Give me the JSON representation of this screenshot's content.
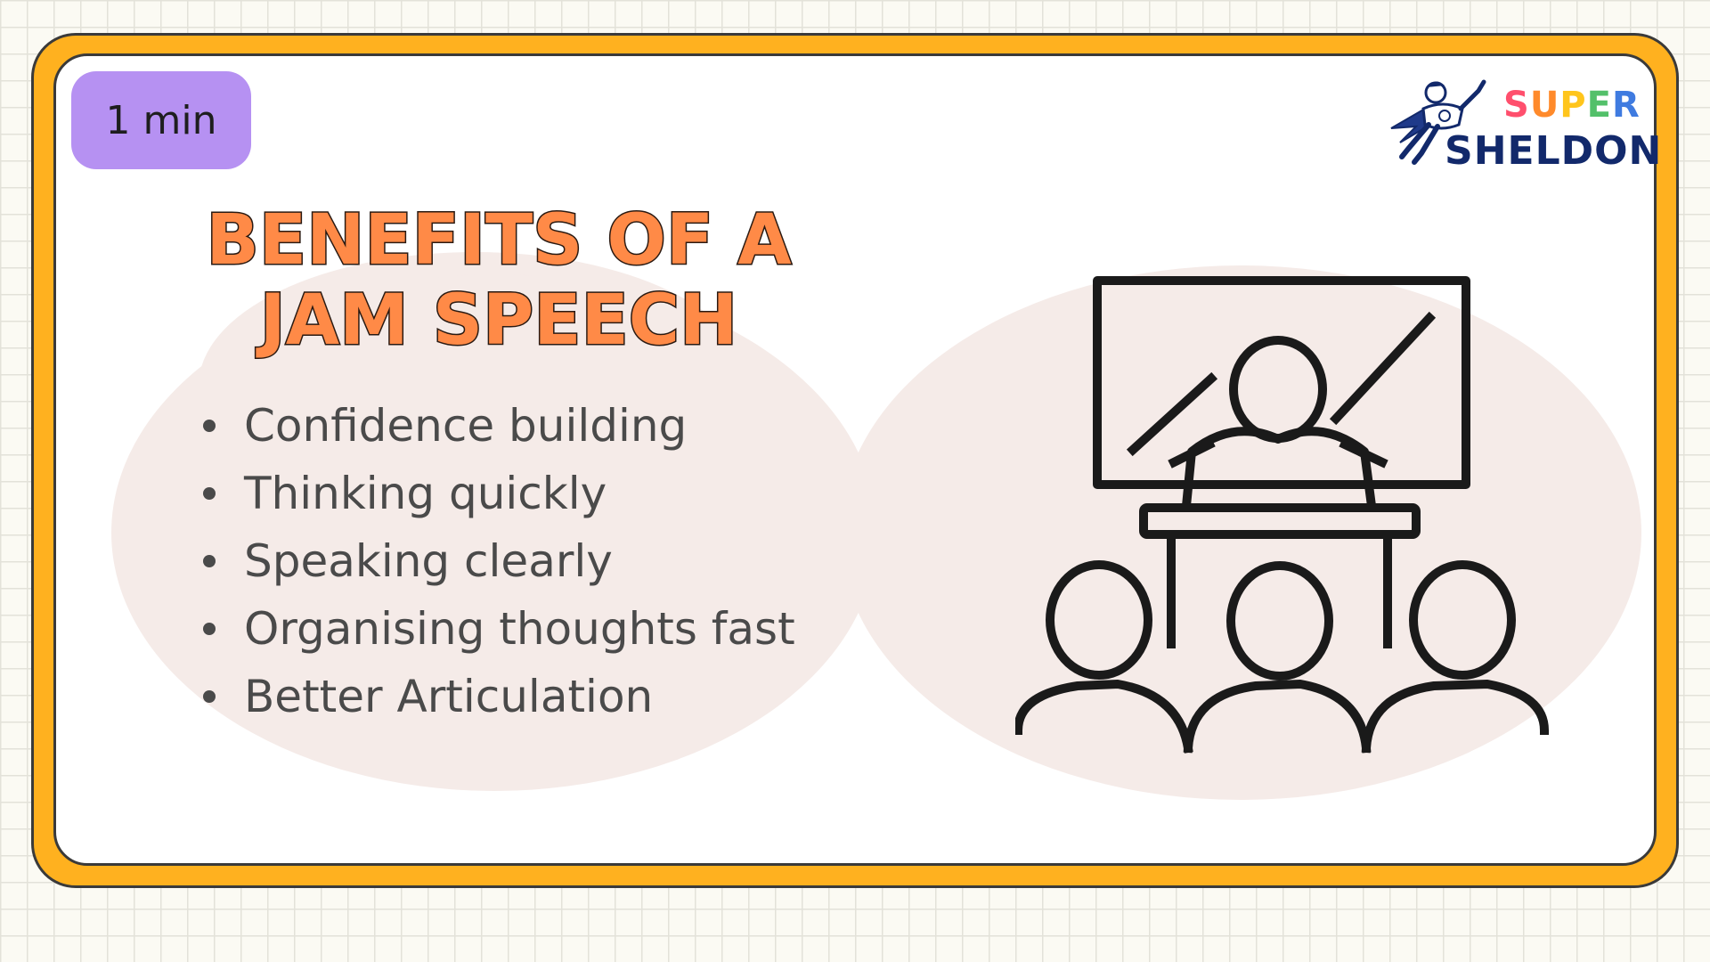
{
  "timer": {
    "label": "1 min"
  },
  "logo": {
    "line1": "SUPER",
    "line2": "SHELDON",
    "colors": [
      "#ff4f6d",
      "#ff8a2b",
      "#ffc51c",
      "#53c06a",
      "#3f7be0"
    ],
    "icon": "flying-superhero-icon"
  },
  "slide": {
    "title": "Benefits of a JAM Speech",
    "benefits": [
      "Confidence building",
      "Thinking quickly",
      "Speaking clearly",
      "Organising thoughts fast",
      "Better Articulation"
    ]
  },
  "illustration": {
    "icon": "speaker-at-podium-audience-icon"
  },
  "colors": {
    "frame": "#ffb11f",
    "timer_badge": "#b691f2",
    "title": "#ff8a47",
    "blob": "#f5ebe8",
    "text": "#4a4a4a",
    "outline": "#3a3a3a"
  }
}
